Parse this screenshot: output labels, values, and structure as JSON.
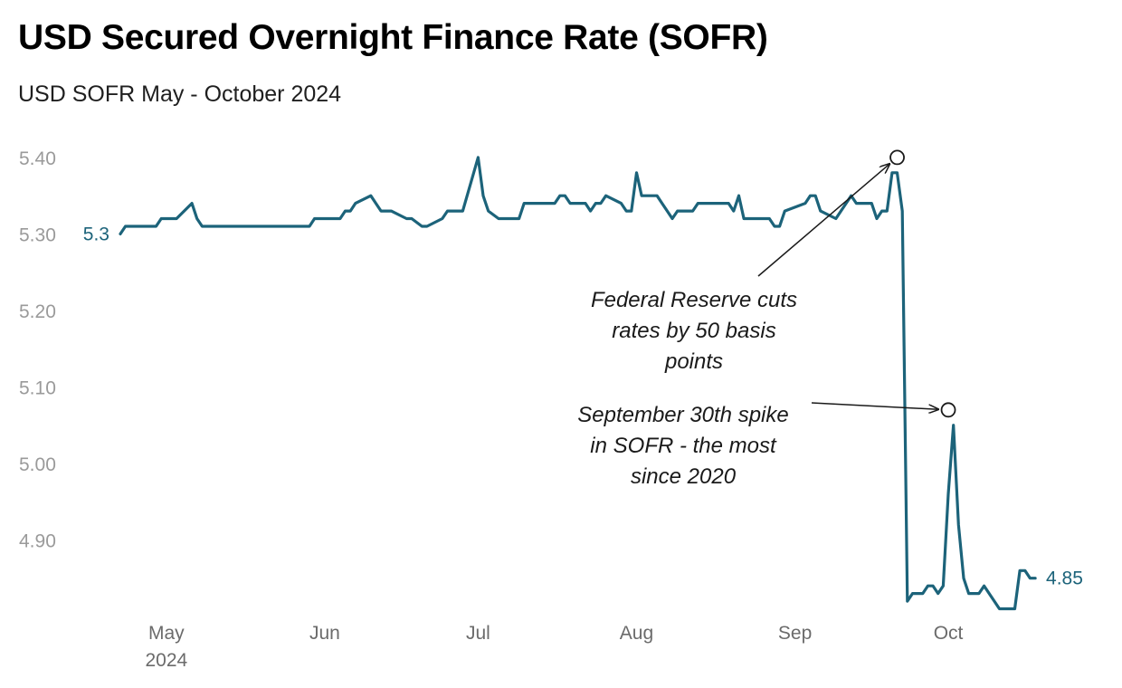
{
  "title": "USD Secured Overnight Finance Rate (SOFR)",
  "subtitle": "USD SOFR May - October 2024",
  "colors": {
    "line": "#1c637a",
    "axis_text": "#9a9a9a",
    "annotation": "#1a1a1a"
  },
  "chart_data": {
    "type": "line",
    "title": "USD Secured Overnight Finance Rate (SOFR)",
    "subtitle": "USD SOFR May - October 2024",
    "xlabel": "",
    "ylabel": "",
    "x_range": [
      "2024-04-22",
      "2024-10-21"
    ],
    "ylim": [
      4.8,
      5.42
    ],
    "y_ticks": [
      {
        "value": 5.4,
        "label": "5.40"
      },
      {
        "value": 5.3,
        "label": "5.30"
      },
      {
        "value": 5.2,
        "label": "5.20"
      },
      {
        "value": 5.1,
        "label": "5.10"
      },
      {
        "value": 5.0,
        "label": "5.00"
      },
      {
        "value": 4.9,
        "label": "4.90"
      }
    ],
    "x_ticks": [
      {
        "date": "2024-05-01",
        "label": "May",
        "sublabel": "2024"
      },
      {
        "date": "2024-06-01",
        "label": "Jun"
      },
      {
        "date": "2024-07-01",
        "label": "Jul"
      },
      {
        "date": "2024-08-01",
        "label": "Aug"
      },
      {
        "date": "2024-09-01",
        "label": "Sep"
      },
      {
        "date": "2024-10-01",
        "label": "Oct"
      }
    ],
    "grid": false,
    "start_label": "5.3",
    "end_label": "4.85",
    "series": [
      {
        "points": [
          [
            "2024-04-22",
            5.3
          ],
          [
            "2024-04-23",
            5.31
          ],
          [
            "2024-04-24",
            5.31
          ],
          [
            "2024-04-25",
            5.31
          ],
          [
            "2024-04-26",
            5.31
          ],
          [
            "2024-04-29",
            5.31
          ],
          [
            "2024-04-30",
            5.32
          ],
          [
            "2024-05-01",
            5.32
          ],
          [
            "2024-05-02",
            5.32
          ],
          [
            "2024-05-03",
            5.32
          ],
          [
            "2024-05-06",
            5.34
          ],
          [
            "2024-05-07",
            5.32
          ],
          [
            "2024-05-08",
            5.31
          ],
          [
            "2024-05-09",
            5.31
          ],
          [
            "2024-05-10",
            5.31
          ],
          [
            "2024-05-13",
            5.31
          ],
          [
            "2024-05-14",
            5.31
          ],
          [
            "2024-05-15",
            5.31
          ],
          [
            "2024-05-16",
            5.31
          ],
          [
            "2024-05-17",
            5.31
          ],
          [
            "2024-05-20",
            5.31
          ],
          [
            "2024-05-21",
            5.31
          ],
          [
            "2024-05-22",
            5.31
          ],
          [
            "2024-05-23",
            5.31
          ],
          [
            "2024-05-24",
            5.31
          ],
          [
            "2024-05-28",
            5.31
          ],
          [
            "2024-05-29",
            5.31
          ],
          [
            "2024-05-30",
            5.32
          ],
          [
            "2024-05-31",
            5.32
          ],
          [
            "2024-06-03",
            5.32
          ],
          [
            "2024-06-04",
            5.32
          ],
          [
            "2024-06-05",
            5.33
          ],
          [
            "2024-06-06",
            5.33
          ],
          [
            "2024-06-07",
            5.34
          ],
          [
            "2024-06-10",
            5.35
          ],
          [
            "2024-06-11",
            5.34
          ],
          [
            "2024-06-12",
            5.33
          ],
          [
            "2024-06-13",
            5.33
          ],
          [
            "2024-06-14",
            5.33
          ],
          [
            "2024-06-17",
            5.32
          ],
          [
            "2024-06-18",
            5.32
          ],
          [
            "2024-06-20",
            5.31
          ],
          [
            "2024-06-21",
            5.31
          ],
          [
            "2024-06-24",
            5.32
          ],
          [
            "2024-06-25",
            5.33
          ],
          [
            "2024-06-26",
            5.33
          ],
          [
            "2024-06-27",
            5.33
          ],
          [
            "2024-06-28",
            5.33
          ],
          [
            "2024-07-01",
            5.4
          ],
          [
            "2024-07-02",
            5.35
          ],
          [
            "2024-07-03",
            5.33
          ],
          [
            "2024-07-05",
            5.32
          ],
          [
            "2024-07-08",
            5.32
          ],
          [
            "2024-07-09",
            5.32
          ],
          [
            "2024-07-10",
            5.34
          ],
          [
            "2024-07-11",
            5.34
          ],
          [
            "2024-07-12",
            5.34
          ],
          [
            "2024-07-15",
            5.34
          ],
          [
            "2024-07-16",
            5.34
          ],
          [
            "2024-07-17",
            5.35
          ],
          [
            "2024-07-18",
            5.35
          ],
          [
            "2024-07-19",
            5.34
          ],
          [
            "2024-07-22",
            5.34
          ],
          [
            "2024-07-23",
            5.33
          ],
          [
            "2024-07-24",
            5.34
          ],
          [
            "2024-07-25",
            5.34
          ],
          [
            "2024-07-26",
            5.35
          ],
          [
            "2024-07-29",
            5.34
          ],
          [
            "2024-07-30",
            5.33
          ],
          [
            "2024-07-31",
            5.33
          ],
          [
            "2024-08-01",
            5.38
          ],
          [
            "2024-08-02",
            5.35
          ],
          [
            "2024-08-05",
            5.35
          ],
          [
            "2024-08-06",
            5.34
          ],
          [
            "2024-08-07",
            5.33
          ],
          [
            "2024-08-08",
            5.32
          ],
          [
            "2024-08-09",
            5.33
          ],
          [
            "2024-08-12",
            5.33
          ],
          [
            "2024-08-13",
            5.34
          ],
          [
            "2024-08-14",
            5.34
          ],
          [
            "2024-08-15",
            5.34
          ],
          [
            "2024-08-16",
            5.34
          ],
          [
            "2024-08-19",
            5.34
          ],
          [
            "2024-08-20",
            5.33
          ],
          [
            "2024-08-21",
            5.35
          ],
          [
            "2024-08-22",
            5.32
          ],
          [
            "2024-08-23",
            5.32
          ],
          [
            "2024-08-26",
            5.32
          ],
          [
            "2024-08-27",
            5.32
          ],
          [
            "2024-08-28",
            5.31
          ],
          [
            "2024-08-29",
            5.31
          ],
          [
            "2024-08-30",
            5.33
          ],
          [
            "2024-09-03",
            5.34
          ],
          [
            "2024-09-04",
            5.35
          ],
          [
            "2024-09-05",
            5.35
          ],
          [
            "2024-09-06",
            5.33
          ],
          [
            "2024-09-09",
            5.32
          ],
          [
            "2024-09-10",
            5.33
          ],
          [
            "2024-09-11",
            5.34
          ],
          [
            "2024-09-12",
            5.35
          ],
          [
            "2024-09-13",
            5.34
          ],
          [
            "2024-09-16",
            5.34
          ],
          [
            "2024-09-17",
            5.32
          ],
          [
            "2024-09-18",
            5.33
          ],
          [
            "2024-09-19",
            5.33
          ],
          [
            "2024-09-20",
            5.38
          ],
          [
            "2024-09-21",
            5.38
          ],
          [
            "2024-09-22",
            5.33
          ],
          [
            "2024-09-23",
            4.82
          ],
          [
            "2024-09-24",
            4.83
          ],
          [
            "2024-09-25",
            4.83
          ],
          [
            "2024-09-26",
            4.83
          ],
          [
            "2024-09-27",
            4.84
          ],
          [
            "2024-09-28",
            4.84
          ],
          [
            "2024-09-29",
            4.83
          ],
          [
            "2024-09-30",
            4.84
          ],
          [
            "2024-10-01",
            4.96
          ],
          [
            "2024-10-02",
            5.05
          ],
          [
            "2024-10-03",
            4.92
          ],
          [
            "2024-10-04",
            4.85
          ],
          [
            "2024-10-05",
            4.83
          ],
          [
            "2024-10-06",
            4.83
          ],
          [
            "2024-10-07",
            4.83
          ],
          [
            "2024-10-08",
            4.84
          ],
          [
            "2024-10-09",
            4.83
          ],
          [
            "2024-10-10",
            4.82
          ],
          [
            "2024-10-11",
            4.81
          ],
          [
            "2024-10-12",
            4.81
          ],
          [
            "2024-10-14",
            4.81
          ],
          [
            "2024-10-15",
            4.86
          ],
          [
            "2024-10-16",
            4.86
          ],
          [
            "2024-10-17",
            4.85
          ],
          [
            "2024-10-18",
            4.85
          ]
        ]
      }
    ],
    "annotations": [
      {
        "lines": [
          "Federal Reserve cuts",
          "rates by 50 basis",
          "points"
        ],
        "marker": {
          "date": "2024-09-21",
          "value": 5.4
        }
      },
      {
        "lines": [
          "September 30th spike",
          "in SOFR - the most",
          "since 2020"
        ],
        "marker": {
          "date": "2024-10-01",
          "value": 5.07
        }
      }
    ]
  }
}
